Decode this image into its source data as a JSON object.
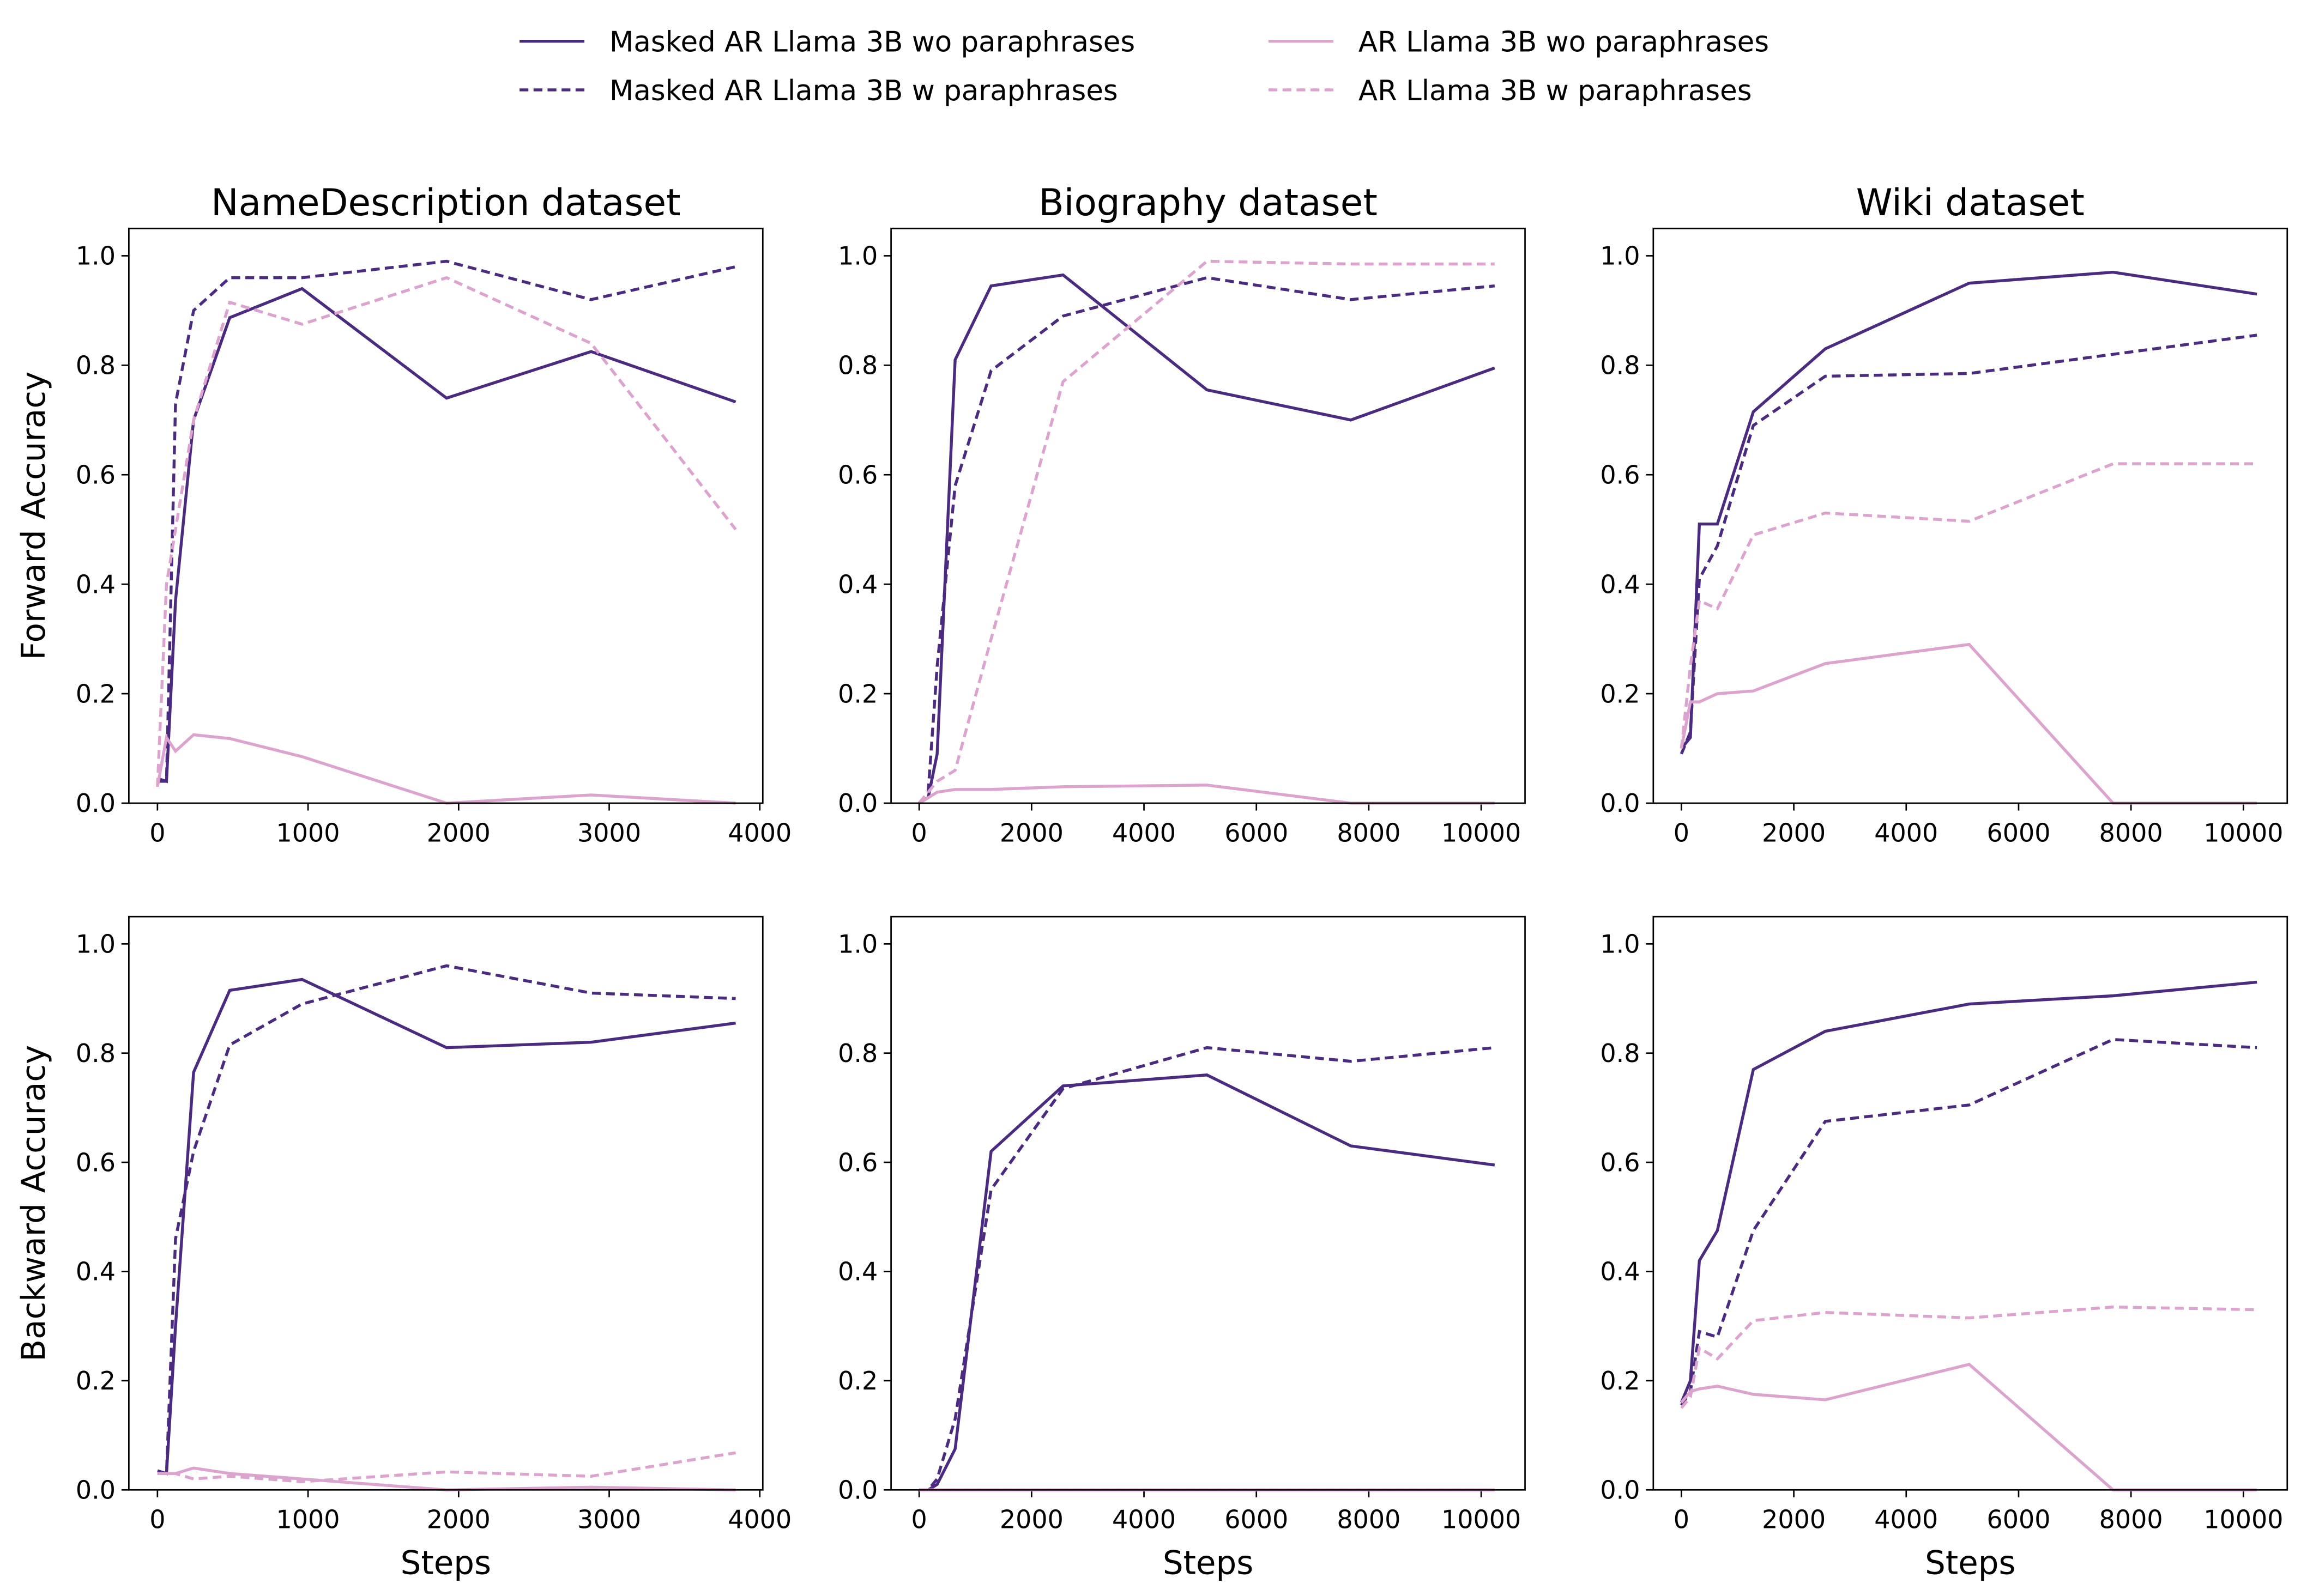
{
  "chart_data": [
    {
      "type": "line",
      "title": "NameDescription dataset",
      "y_label": "Forward Accuracy",
      "legend": "top center",
      "x": [
        0,
        60,
        120,
        240,
        480,
        960,
        1920,
        2880,
        3840
      ],
      "xlim": [
        -190,
        4020
      ],
      "xticks": [
        0,
        1000,
        2000,
        3000,
        4000
      ],
      "ylim": [
        0,
        1.05
      ],
      "yticks": [
        {
          "value": 0,
          "label": "0.0"
        },
        0.2,
        0.4,
        0.6,
        0.8,
        {
          "value": 1,
          "label": "1.0"
        }
      ],
      "series": [
        {
          "name": "Masked AR Llama 3B wo paraphrases",
          "color": "#4a2b7f",
          "linestyle": "solid",
          "values": [
            0.045,
            0.04,
            0.37,
            0.7,
            0.887,
            0.94,
            0.74,
            0.825,
            0.733
          ]
        },
        {
          "name": "Masked AR Llama 3B w paraphrases",
          "color": "#4a2b7f",
          "linestyle": "dashed",
          "values": [
            0.04,
            0.04,
            0.73,
            0.9,
            0.96,
            0.96,
            0.99,
            0.92,
            0.98
          ]
        },
        {
          "name": "AR Llama 3B wo paraphrases",
          "color": "#dda3cf",
          "linestyle": "solid",
          "values": [
            0.03,
            0.12,
            0.095,
            0.125,
            0.118,
            0.085,
            0,
            0.015,
            0
          ]
        },
        {
          "name": "AR Llama 3B w paraphrases",
          "color": "#dda3cf",
          "linestyle": "dashed",
          "values": [
            0.03,
            0.4,
            0.5,
            0.7,
            0.915,
            0.875,
            0.96,
            0.84,
            0.5
          ]
        }
      ]
    },
    {
      "type": "line",
      "title": "Biography dataset",
      "x": [
        0,
        160,
        320,
        640,
        1280,
        2560,
        5120,
        7680,
        10240
      ],
      "xlim": [
        -500,
        10780
      ],
      "xticks": [
        0,
        2000,
        4000,
        6000,
        8000,
        10000
      ],
      "ylim": [
        0,
        1.05
      ],
      "yticks": [
        {
          "value": 0,
          "label": "0.0"
        },
        0.2,
        0.4,
        0.6,
        0.8,
        {
          "value": 1,
          "label": "1.0"
        }
      ],
      "series": [
        {
          "name": "Masked AR Llama 3B wo paraphrases",
          "color": "#4a2b7f",
          "linestyle": "solid",
          "values": [
            0,
            0.01,
            0.09,
            0.81,
            0.945,
            0.965,
            0.755,
            0.7,
            0.795
          ]
        },
        {
          "name": "Masked AR Llama 3B w paraphrases",
          "color": "#4a2b7f",
          "linestyle": "dashed",
          "values": [
            0,
            0.02,
            0.25,
            0.58,
            0.79,
            0.89,
            0.96,
            0.92,
            0.945
          ]
        },
        {
          "name": "AR Llama 3B wo paraphrases",
          "color": "#dda3cf",
          "linestyle": "solid",
          "values": [
            0,
            0.01,
            0.02,
            0.025,
            0.025,
            0.03,
            0.033,
            0,
            0
          ]
        },
        {
          "name": "AR Llama 3B w paraphrases",
          "color": "#dda3cf",
          "linestyle": "dashed",
          "values": [
            0,
            0.02,
            0.04,
            0.06,
            0.3,
            0.77,
            0.99,
            0.985,
            0.985
          ]
        }
      ]
    },
    {
      "type": "line",
      "title": "Wiki dataset",
      "x": [
        0,
        160,
        320,
        640,
        1280,
        2560,
        5120,
        7680,
        10240
      ],
      "xlim": [
        -500,
        10780
      ],
      "xticks": [
        0,
        2000,
        4000,
        6000,
        8000,
        10000
      ],
      "ylim": [
        0,
        1.05
      ],
      "yticks": [
        {
          "value": 0,
          "label": "0.0"
        },
        0.2,
        0.4,
        0.6,
        0.8,
        {
          "value": 1,
          "label": "1.0"
        }
      ],
      "series": [
        {
          "name": "Masked AR Llama 3B wo paraphrases",
          "color": "#4a2b7f",
          "linestyle": "solid",
          "values": [
            0.1,
            0.12,
            0.51,
            0.51,
            0.715,
            0.83,
            0.95,
            0.97,
            0.93
          ]
        },
        {
          "name": "Masked AR Llama 3B w paraphrases",
          "color": "#4a2b7f",
          "linestyle": "dashed",
          "values": [
            0.09,
            0.13,
            0.41,
            0.47,
            0.69,
            0.78,
            0.785,
            0.82,
            0.855
          ]
        },
        {
          "name": "AR Llama 3B wo paraphrases",
          "color": "#dda3cf",
          "linestyle": "solid",
          "values": [
            0.1,
            0.185,
            0.185,
            0.2,
            0.205,
            0.255,
            0.29,
            0,
            0
          ]
        },
        {
          "name": "AR Llama 3B w paraphrases",
          "color": "#dda3cf",
          "linestyle": "dashed",
          "values": [
            0.1,
            0.25,
            0.37,
            0.355,
            0.49,
            0.53,
            0.515,
            0.62,
            0.62
          ]
        }
      ]
    },
    {
      "type": "line",
      "y_label": "Backward Accuracy",
      "x_label": "Steps",
      "x": [
        0,
        60,
        120,
        240,
        480,
        960,
        1920,
        2880,
        3840
      ],
      "xlim": [
        -190,
        4020
      ],
      "xticks": [
        0,
        1000,
        2000,
        3000,
        4000
      ],
      "ylim": [
        0,
        1.05
      ],
      "yticks": [
        {
          "value": 0,
          "label": "0.0"
        },
        0.2,
        0.4,
        0.6,
        0.8,
        {
          "value": 1,
          "label": "1.0"
        }
      ],
      "series": [
        {
          "name": "Masked AR Llama 3B wo paraphrases",
          "color": "#4a2b7f",
          "linestyle": "solid",
          "values": [
            0.035,
            0.03,
            0.3,
            0.765,
            0.915,
            0.935,
            0.81,
            0.82,
            0.855
          ]
        },
        {
          "name": "Masked AR Llama 3B w paraphrases",
          "color": "#4a2b7f",
          "linestyle": "dashed",
          "values": [
            0.03,
            0.03,
            0.46,
            0.62,
            0.815,
            0.89,
            0.96,
            0.91,
            0.9
          ]
        },
        {
          "name": "AR Llama 3B wo paraphrases",
          "color": "#dda3cf",
          "linestyle": "solid",
          "values": [
            0.03,
            0.03,
            0.03,
            0.04,
            0.03,
            0.02,
            0,
            0.005,
            0
          ]
        },
        {
          "name": "AR Llama 3B w paraphrases",
          "color": "#dda3cf",
          "linestyle": "dashed",
          "values": [
            0.03,
            0.03,
            0.03,
            0.02,
            0.025,
            0.015,
            0.033,
            0.025,
            0.068
          ]
        }
      ]
    },
    {
      "type": "line",
      "x_label": "Steps",
      "x": [
        0,
        160,
        320,
        640,
        1280,
        2560,
        5120,
        7680,
        10240
      ],
      "xlim": [
        -500,
        10780
      ],
      "xticks": [
        0,
        2000,
        4000,
        6000,
        8000,
        10000
      ],
      "ylim": [
        0,
        1.05
      ],
      "yticks": [
        {
          "value": 0,
          "label": "0.0"
        },
        0.2,
        0.4,
        0.6,
        0.8,
        {
          "value": 1,
          "label": "1.0"
        }
      ],
      "series": [
        {
          "name": "Masked AR Llama 3B wo paraphrases",
          "color": "#4a2b7f",
          "linestyle": "solid",
          "values": [
            0,
            0,
            0.01,
            0.075,
            0.62,
            0.74,
            0.76,
            0.63,
            0.595
          ]
        },
        {
          "name": "Masked AR Llama 3B w paraphrases",
          "color": "#4a2b7f",
          "linestyle": "dashed",
          "values": [
            0,
            0,
            0.02,
            0.13,
            0.55,
            0.735,
            0.81,
            0.785,
            0.81
          ]
        },
        {
          "name": "AR Llama 3B wo paraphrases",
          "color": "#dda3cf",
          "linestyle": "solid",
          "values": [
            0,
            0,
            0,
            0,
            0,
            0,
            0,
            0,
            0
          ]
        },
        {
          "name": "AR Llama 3B w paraphrases",
          "color": "#dda3cf",
          "linestyle": "dashed",
          "values": [
            0,
            0,
            0,
            0,
            0,
            0,
            0,
            0,
            0
          ]
        }
      ]
    },
    {
      "type": "line",
      "x_label": "Steps",
      "x": [
        0,
        160,
        320,
        640,
        1280,
        2560,
        5120,
        7680,
        10240
      ],
      "xlim": [
        -500,
        10780
      ],
      "xticks": [
        0,
        2000,
        4000,
        6000,
        8000,
        10000
      ],
      "ylim": [
        0,
        1.05
      ],
      "yticks": [
        {
          "value": 0,
          "label": "0.0"
        },
        0.2,
        0.4,
        0.6,
        0.8,
        {
          "value": 1,
          "label": "1.0"
        }
      ],
      "series": [
        {
          "name": "Masked AR Llama 3B wo paraphrases",
          "color": "#4a2b7f",
          "linestyle": "solid",
          "values": [
            0.16,
            0.2,
            0.42,
            0.475,
            0.77,
            0.84,
            0.89,
            0.905,
            0.93
          ]
        },
        {
          "name": "Masked AR Llama 3B w paraphrases",
          "color": "#4a2b7f",
          "linestyle": "dashed",
          "values": [
            0.155,
            0.18,
            0.29,
            0.28,
            0.475,
            0.675,
            0.705,
            0.825,
            0.81
          ]
        },
        {
          "name": "AR Llama 3B wo paraphrases",
          "color": "#dda3cf",
          "linestyle": "solid",
          "values": [
            0.16,
            0.18,
            0.185,
            0.19,
            0.175,
            0.165,
            0.23,
            0,
            0
          ]
        },
        {
          "name": "AR Llama 3B w paraphrases",
          "color": "#dda3cf",
          "linestyle": "dashed",
          "values": [
            0.15,
            0.17,
            0.26,
            0.24,
            0.31,
            0.325,
            0.315,
            0.335,
            0.33
          ]
        }
      ]
    }
  ]
}
